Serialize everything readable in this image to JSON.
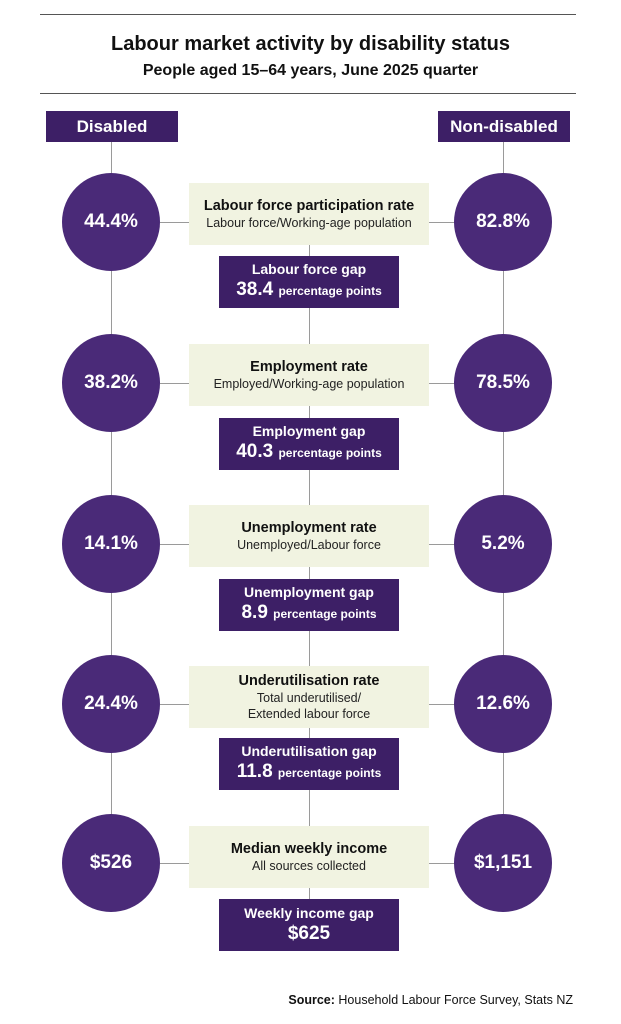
{
  "header": {
    "title": "Labour market activity by disability status",
    "subtitle": "People aged 15–64 years, June 2025 quarter"
  },
  "columns": {
    "left": "Disabled",
    "right": "Non-disabled"
  },
  "rows": [
    {
      "name": "Labour force participation rate",
      "definition_lines": [
        "Labour force/Working-age population"
      ],
      "disabled": "44.4%",
      "non_disabled": "82.8%",
      "gap_label": "Labour force gap",
      "gap_value": "38.4",
      "gap_unit": "percentage points"
    },
    {
      "name": "Employment rate",
      "definition_lines": [
        "Employed/Working-age population"
      ],
      "disabled": "38.2%",
      "non_disabled": "78.5%",
      "gap_label": "Employment gap",
      "gap_value": "40.3",
      "gap_unit": "percentage points"
    },
    {
      "name": "Unemployment rate",
      "definition_lines": [
        "Unemployed/Labour force"
      ],
      "disabled": "14.1%",
      "non_disabled": "5.2%",
      "gap_label": "Unemployment gap",
      "gap_value": "8.9",
      "gap_unit": "percentage points"
    },
    {
      "name": "Underutilisation rate",
      "definition_lines": [
        "Total underutilised/",
        "Extended labour force"
      ],
      "disabled": "24.4%",
      "non_disabled": "12.6%",
      "gap_label": "Underutilisation gap",
      "gap_value": "11.8",
      "gap_unit": "percentage points"
    },
    {
      "name": "Median weekly income",
      "definition_lines": [
        "All sources collected"
      ],
      "disabled": "$526",
      "non_disabled": "$1,151",
      "gap_label": "Weekly income gap",
      "gap_value": "$625",
      "gap_unit": ""
    }
  ],
  "footer": {
    "source_label": "Source:",
    "source_text": " Household Labour Force Survey, Stats NZ"
  },
  "colors": {
    "purple_dark": "#3d1f66",
    "purple_circle": "#4a2a78",
    "box_cream": "#f1f3e1"
  }
}
